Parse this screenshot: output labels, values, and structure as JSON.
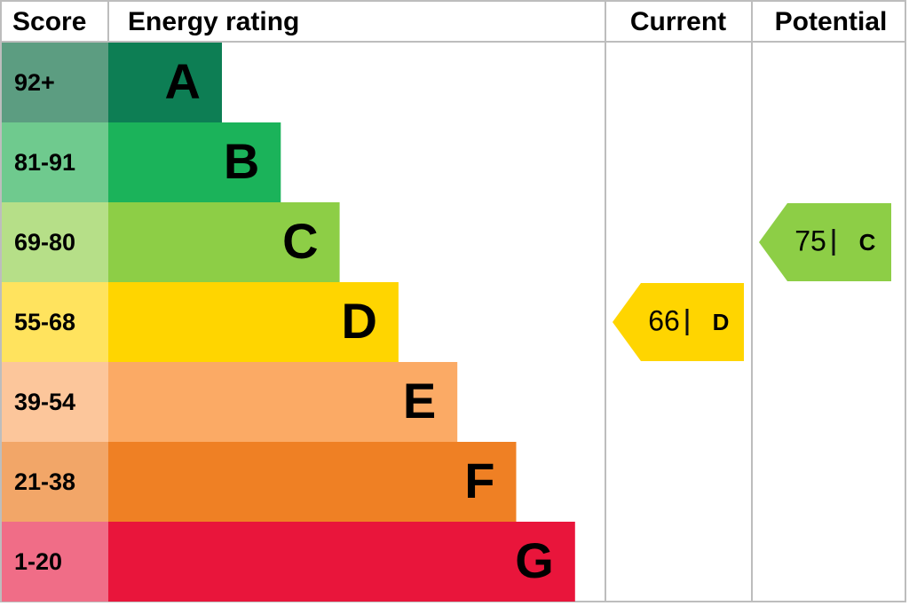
{
  "header": {
    "score": "Score",
    "energy_rating": "Energy rating",
    "current": "Current",
    "potential": "Potential"
  },
  "bands": [
    {
      "score": "92+",
      "letter": "A",
      "color": "#0d7e54",
      "light": "#5c9d81"
    },
    {
      "score": "81-91",
      "letter": "B",
      "color": "#1bb35a",
      "light": "#6fca8e"
    },
    {
      "score": "69-80",
      "letter": "C",
      "color": "#8dce46",
      "light": "#b6df88"
    },
    {
      "score": "55-68",
      "letter": "D",
      "color": "#ffd500",
      "light": "#ffe35e"
    },
    {
      "score": "39-54",
      "letter": "E",
      "color": "#fbaa65",
      "light": "#fcc69b"
    },
    {
      "score": "21-38",
      "letter": "F",
      "color": "#ef8024",
      "light": "#f2a668"
    },
    {
      "score": "1-20",
      "letter": "G",
      "color": "#e9153b",
      "light": "#f06d87"
    }
  ],
  "current": {
    "value": 66,
    "letter": "D"
  },
  "potential": {
    "value": 75,
    "letter": "C"
  }
}
